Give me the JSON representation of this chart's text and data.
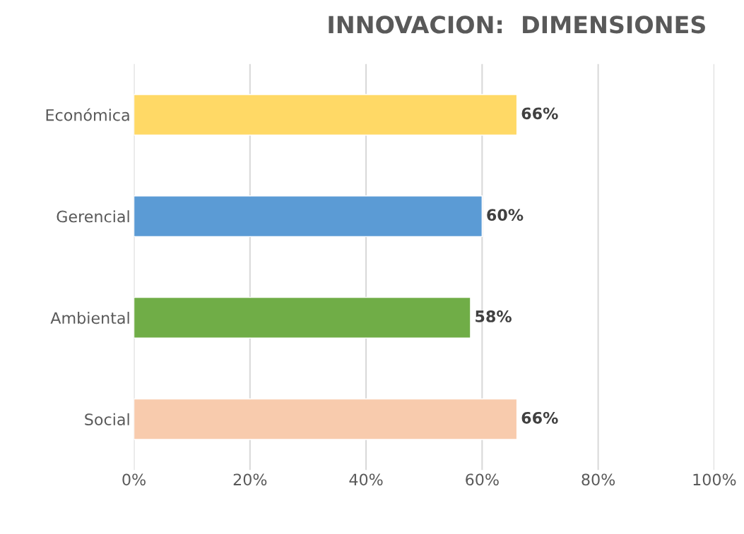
{
  "chart_data": {
    "type": "bar",
    "orientation": "horizontal",
    "title": "INNOVACION:  DIMENSIONES",
    "categories": [
      "Económica",
      "Gerencial",
      "Ambiental",
      "Social"
    ],
    "values": [
      66,
      60,
      58,
      66
    ],
    "colors": [
      "#ffd966",
      "#5b9bd5",
      "#70ad47",
      "#f8cbad"
    ],
    "value_labels": [
      "66%",
      "60%",
      "58%",
      "66%"
    ],
    "xlim": [
      0,
      100
    ],
    "xticks": [
      {
        "value": 0,
        "label": "0%"
      },
      {
        "value": 20,
        "label": "20%"
      },
      {
        "value": 40,
        "label": "40%"
      },
      {
        "value": 60,
        "label": "60%"
      },
      {
        "value": 80,
        "label": "80%"
      },
      {
        "value": 100,
        "label": "100%"
      }
    ],
    "grid": "x",
    "legend": false
  }
}
